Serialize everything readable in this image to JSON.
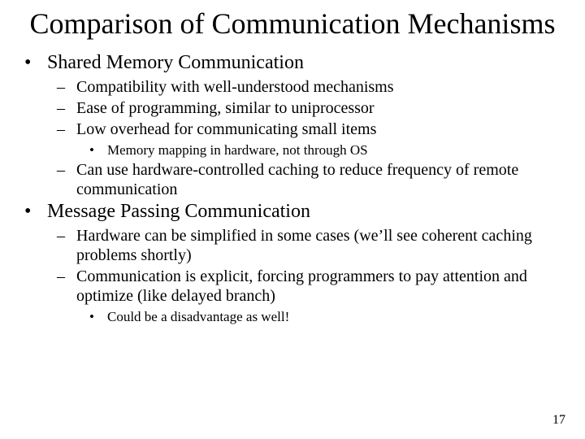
{
  "title": "Comparison of Communication Mechanisms",
  "sections": [
    {
      "heading": "Shared Memory Communication",
      "items": [
        {
          "text": "Compatibility with well-understood mechanisms"
        },
        {
          "text": "Ease of programming, similar to uniprocessor"
        },
        {
          "text": "Low overhead for communicating small items",
          "sub": [
            "Memory mapping in hardware, not through OS"
          ]
        },
        {
          "text": "Can use hardware-controlled caching to reduce frequency of remote communication"
        }
      ]
    },
    {
      "heading": "Message Passing Communication",
      "items": [
        {
          "text": "Hardware can be simplified in some cases (we’ll see coherent caching problems shortly)"
        },
        {
          "text": "Communication is explicit, forcing programmers to pay attention and optimize (like delayed branch)",
          "sub": [
            "Could be a disadvantage as well!"
          ]
        }
      ]
    }
  ],
  "bullets": {
    "l1": "•",
    "l2": "–",
    "l3": "•"
  },
  "page_number": "17",
  "colors": {
    "background": "#ffffff",
    "text": "#000000"
  },
  "typography": {
    "title_fontsize": 36,
    "l1_fontsize": 24,
    "l2_fontsize": 20,
    "l3_fontsize": 17,
    "font_family": "Times New Roman"
  }
}
